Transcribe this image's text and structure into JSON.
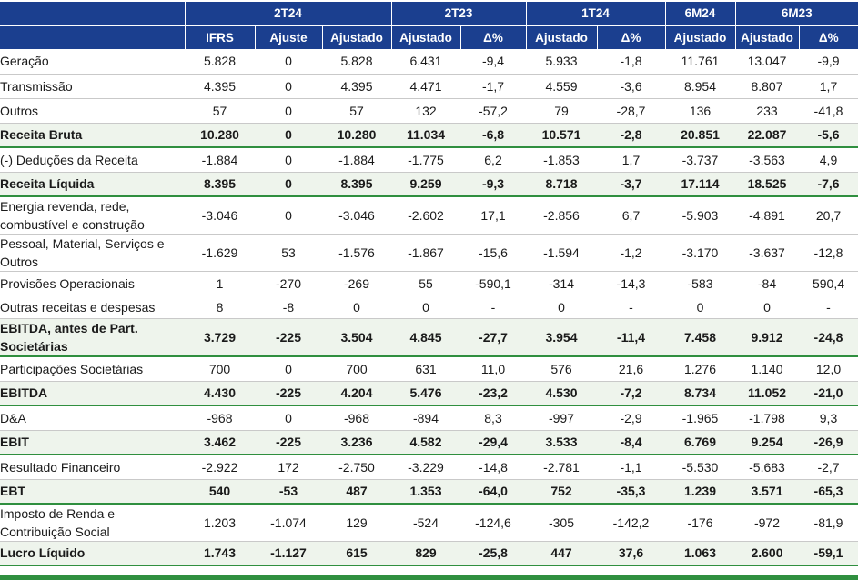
{
  "header": {
    "periods": [
      "2T24",
      "2T23",
      "1T24",
      "6M24",
      "6M23"
    ],
    "columns": [
      "IFRS",
      "Ajuste",
      "Ajustado",
      "Ajustado",
      "Δ%",
      "Ajustado",
      "Δ%",
      "Ajustado",
      "Ajustado",
      "Δ%"
    ]
  },
  "rows": [
    {
      "label": "Geração",
      "values": [
        "5.828",
        "0",
        "5.828",
        "6.431",
        "-9,4",
        "5.933",
        "-1,8",
        "11.761",
        "13.047",
        "-9,9"
      ]
    },
    {
      "label": "Transmissão",
      "values": [
        "4.395",
        "0",
        "4.395",
        "4.471",
        "-1,7",
        "4.559",
        "-3,6",
        "8.954",
        "8.807",
        "1,7"
      ]
    },
    {
      "label": "Outros",
      "values": [
        "57",
        "0",
        "57",
        "132",
        "-57,2",
        "79",
        "-28,7",
        "136",
        "233",
        "-41,8"
      ]
    },
    {
      "label": "Receita Bruta",
      "values": [
        "10.280",
        "0",
        "10.280",
        "11.034",
        "-6,8",
        "10.571",
        "-2,8",
        "20.851",
        "22.087",
        "-5,6"
      ]
    },
    {
      "label": "(-) Deduções da Receita",
      "values": [
        "-1.884",
        "0",
        "-1.884",
        "-1.775",
        "6,2",
        "-1.853",
        "1,7",
        "-3.737",
        "-3.563",
        "4,9"
      ]
    },
    {
      "label": "Receita Líquida",
      "values": [
        "8.395",
        "0",
        "8.395",
        "9.259",
        "-9,3",
        "8.718",
        "-3,7",
        "17.114",
        "18.525",
        "-7,6"
      ]
    },
    {
      "label": "Energia revenda, rede, combustível e construção",
      "values": [
        "-3.046",
        "0",
        "-3.046",
        "-2.602",
        "17,1",
        "-2.856",
        "6,7",
        "-5.903",
        "-4.891",
        "20,7"
      ]
    },
    {
      "label": "Pessoal, Material, Serviços e Outros",
      "values": [
        "-1.629",
        "53",
        "-1.576",
        "-1.867",
        "-15,6",
        "-1.594",
        "-1,2",
        "-3.170",
        "-3.637",
        "-12,8"
      ]
    },
    {
      "label": "Provisões Operacionais",
      "values": [
        "1",
        "-270",
        "-269",
        "55",
        "-590,1",
        "-314",
        "-14,3",
        "-583",
        "-84",
        "590,4"
      ]
    },
    {
      "label": "Outras receitas e despesas",
      "values": [
        "8",
        "-8",
        "0",
        "0",
        "-",
        "0",
        "-",
        "0",
        "0",
        "-"
      ]
    },
    {
      "label": "EBITDA, antes de Part. Societárias",
      "values": [
        "3.729",
        "-225",
        "3.504",
        "4.845",
        "-27,7",
        "3.954",
        "-11,4",
        "7.458",
        "9.912",
        "-24,8"
      ]
    },
    {
      "label": "Participações Societárias",
      "values": [
        "700",
        "0",
        "700",
        "631",
        "11,0",
        "576",
        "21,6",
        "1.276",
        "1.140",
        "12,0"
      ]
    },
    {
      "label": "EBITDA",
      "values": [
        "4.430",
        "-225",
        "4.204",
        "5.476",
        "-23,2",
        "4.530",
        "-7,2",
        "8.734",
        "11.052",
        "-21,0"
      ]
    },
    {
      "label": "D&A",
      "values": [
        "-968",
        "0",
        "-968",
        "-894",
        "8,3",
        "-997",
        "-2,9",
        "-1.965",
        "-1.798",
        "9,3"
      ]
    },
    {
      "label": "EBIT",
      "values": [
        "3.462",
        "-225",
        "3.236",
        "4.582",
        "-29,4",
        "3.533",
        "-8,4",
        "6.769",
        "9.254",
        "-26,9"
      ]
    },
    {
      "label": "Resultado Financeiro",
      "values": [
        "-2.922",
        "172",
        "-2.750",
        "-3.229",
        "-14,8",
        "-2.781",
        "-1,1",
        "-5.530",
        "-5.683",
        "-2,7"
      ]
    },
    {
      "label": "EBT",
      "values": [
        "540",
        "-53",
        "487",
        "1.353",
        "-64,0",
        "752",
        "-35,3",
        "1.239",
        "3.571",
        "-65,3"
      ]
    },
    {
      "label": "Imposto de Renda e Contribuição Social",
      "values": [
        "1.203",
        "-1.074",
        "129",
        "-524",
        "-124,6",
        "-305",
        "-142,2",
        "-176",
        "-972",
        "-81,9"
      ]
    },
    {
      "label": "Lucro Líquido",
      "values": [
        "1.743",
        "-1.127",
        "615",
        "829",
        "-25,8",
        "447",
        "37,6",
        "1.063",
        "2.600",
        "-59,1"
      ]
    }
  ]
}
